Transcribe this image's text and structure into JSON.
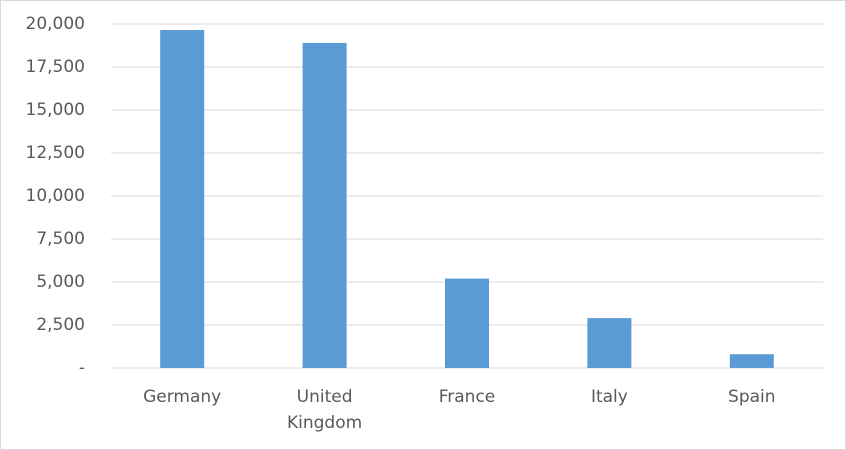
{
  "chart_data": {
    "type": "bar",
    "categories": [
      "Germany",
      "United Kingdom",
      "France",
      "Italy",
      "Spain"
    ],
    "values": [
      19650,
      18900,
      5200,
      2900,
      800
    ],
    "color": "#5b9bd5",
    "ylim": [
      0,
      20000
    ],
    "yticks": [
      {
        "value": 0,
        "label": "-"
      },
      {
        "value": 2500,
        "label": "2,500"
      },
      {
        "value": 5000,
        "label": "5,000"
      },
      {
        "value": 7500,
        "label": "7,500"
      },
      {
        "value": 10000,
        "label": "10,000"
      },
      {
        "value": 12500,
        "label": "12,500"
      },
      {
        "value": 15000,
        "label": "15,000"
      },
      {
        "value": 17500,
        "label": "17,500"
      },
      {
        "value": 20000,
        "label": "20,000"
      }
    ],
    "grid": true
  }
}
